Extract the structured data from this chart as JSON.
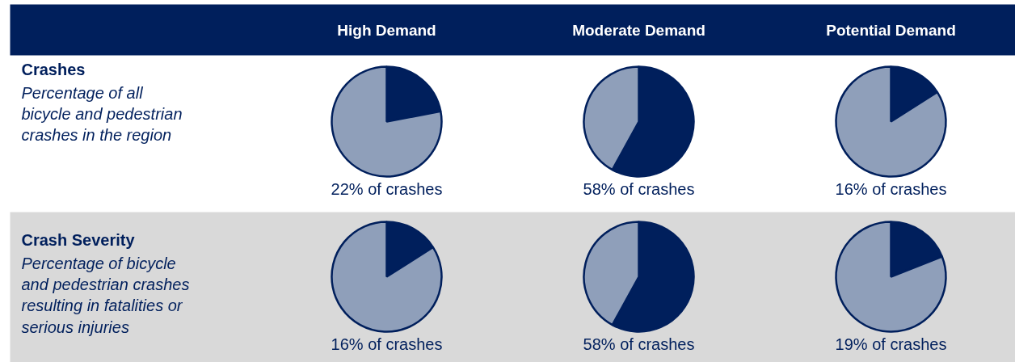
{
  "chart_data": [
    {
      "type": "pie",
      "title": "High Demand",
      "subtitle": "22% of crashes",
      "annotations": [
        "Crashes",
        "Percentage of all\nbicycle and pedestrian\ncrashes in the region"
      ],
      "categories": [
        null,
        null
      ],
      "values": [
        22,
        78
      ],
      "colors": [
        "#001f5c",
        "#8f9fba"
      ]
    },
    {
      "type": "pie",
      "title": "Moderate Demand",
      "subtitle": "58% of crashes",
      "categories": [
        null,
        null
      ],
      "values": [
        58,
        42
      ],
      "colors": [
        "#001f5c",
        "#8f9fba"
      ]
    },
    {
      "type": "pie",
      "title": "Potential Demand",
      "subtitle": "16% of crashes",
      "categories": [
        null,
        null
      ],
      "values": [
        16,
        84
      ],
      "colors": [
        "#001f5c",
        "#8f9fba"
      ]
    },
    {
      "type": "pie",
      "subtitle": "16% of crashes",
      "annotations": [
        "Crash Severity",
        "Percentage of bicycle\nand pedestrian crashes\nresulting in fatalities or\nserious injuries"
      ],
      "categories": [
        null,
        null
      ],
      "values": [
        16,
        84
      ],
      "colors": [
        "#001f5c",
        "#8f9fba"
      ]
    },
    {
      "type": "pie",
      "subtitle": "58% of crashes",
      "categories": [
        null,
        null
      ],
      "values": [
        58,
        42
      ],
      "colors": [
        "#001f5c",
        "#8f9fba"
      ]
    },
    {
      "type": "pie",
      "subtitle": "19% of crashes",
      "categories": [
        null,
        null
      ],
      "values": [
        19,
        81
      ],
      "colors": [
        "#001f5c",
        "#8f9fba"
      ]
    }
  ]
}
